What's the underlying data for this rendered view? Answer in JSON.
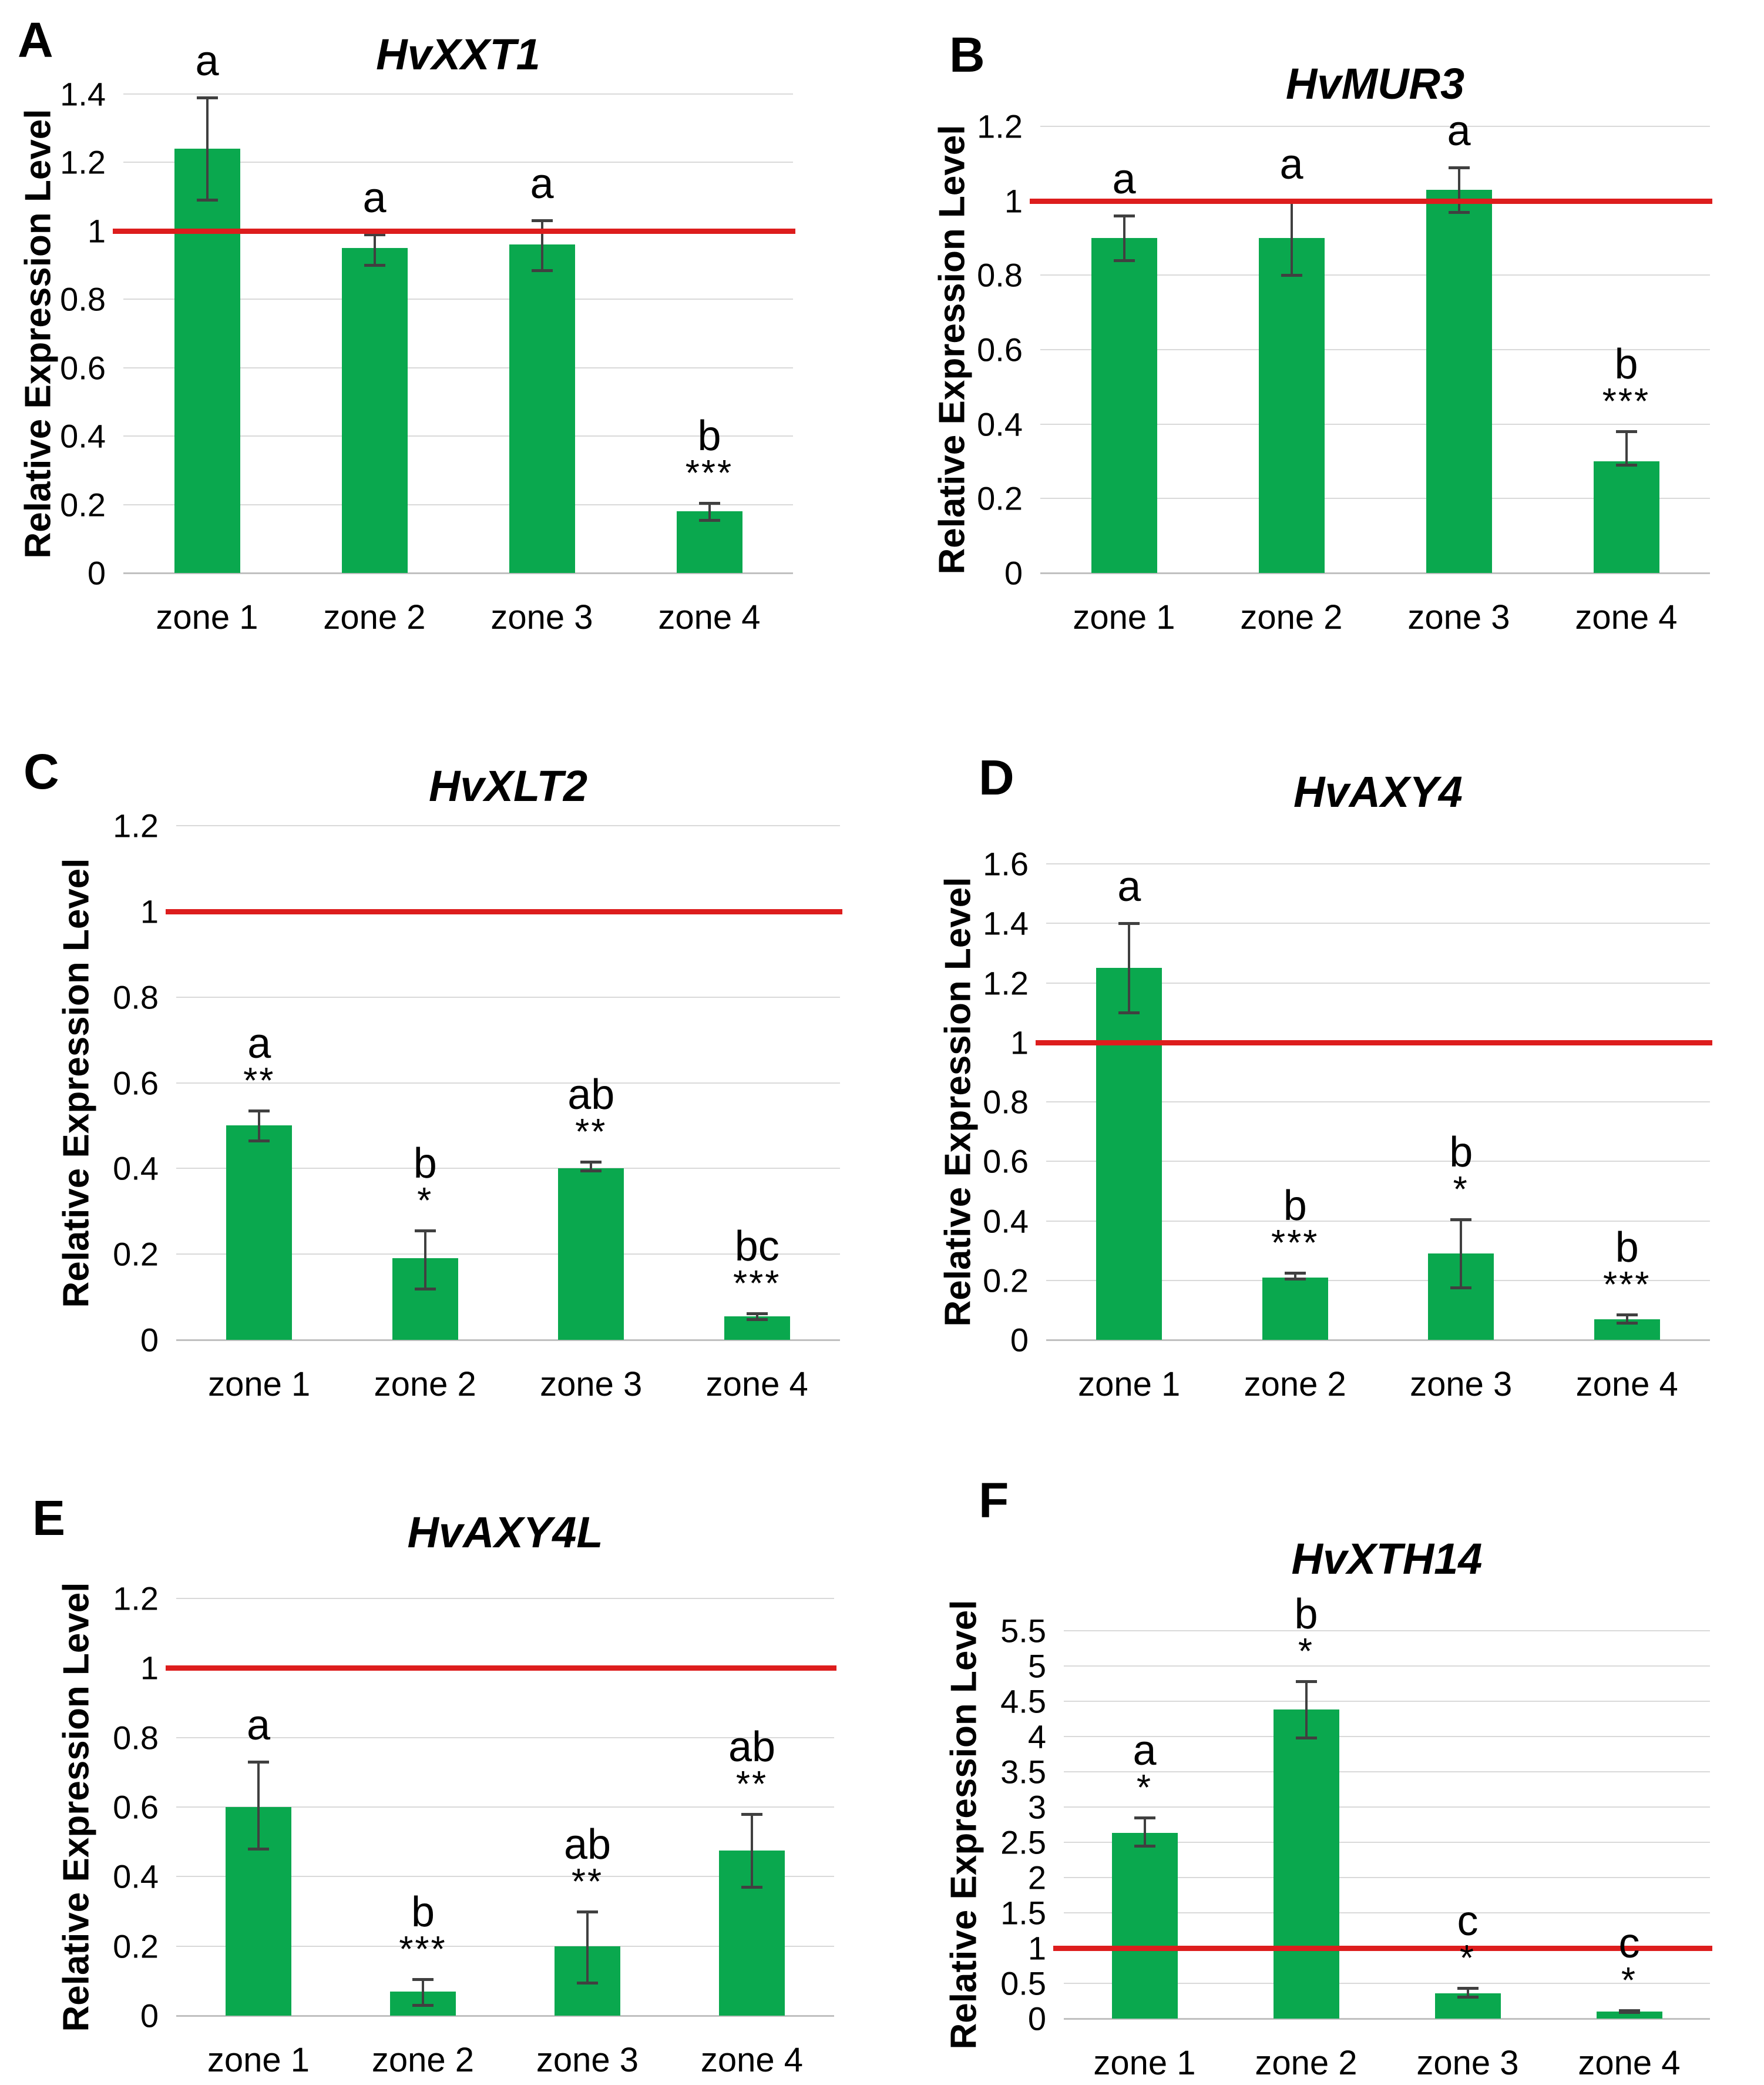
{
  "figure": {
    "y_axis_label": "Relative Expression Level",
    "categories": [
      "zone 1",
      "zone 2",
      "zone 3",
      "zone 4"
    ],
    "colors": {
      "bar_green": "#0aa84e",
      "reference_red": "#dd1d1d",
      "gridline": "#d9d9d9",
      "error_bar": "#404040",
      "text": "#000000"
    }
  },
  "chart_data": [
    {
      "type": "bar",
      "panel_letter": "A",
      "title": "HvXXT1",
      "ylim": [
        0,
        1.4
      ],
      "ytick_labels": [
        "1.4",
        "1.2",
        "1",
        "0.8",
        "0.6",
        "0.4",
        "0.2",
        "0"
      ],
      "reference_line": 1,
      "categories": [
        "zone 1",
        "zone 2",
        "zone 3",
        "zone 4"
      ],
      "values": [
        1.24,
        0.95,
        0.96,
        0.18
      ],
      "err_low": [
        1.09,
        0.9,
        0.885,
        0.155
      ],
      "err_high": [
        1.39,
        0.99,
        1.03,
        0.205
      ],
      "sig_letters": [
        "a",
        "a",
        "a",
        "b"
      ],
      "sig_stars": [
        "",
        "",
        "",
        "***"
      ]
    },
    {
      "type": "bar",
      "panel_letter": "B",
      "title": "HvMUR3",
      "ylim": [
        0,
        1.2
      ],
      "ytick_labels": [
        "1.2",
        "1",
        "0.8",
        "0.6",
        "0.4",
        "0.2",
        "0"
      ],
      "reference_line": 1,
      "categories": [
        "zone 1",
        "zone 2",
        "zone 3",
        "zone 4"
      ],
      "values": [
        0.9,
        0.9,
        1.03,
        0.3
      ],
      "err_low": [
        0.84,
        0.8,
        0.97,
        0.29
      ],
      "err_high": [
        0.96,
        1.0,
        1.09,
        0.38
      ],
      "sig_letters": [
        "a",
        "a",
        "a",
        "b"
      ],
      "sig_stars": [
        "",
        "",
        "",
        "***"
      ]
    },
    {
      "type": "bar",
      "panel_letter": "C",
      "title": "HvXLT2",
      "ylim": [
        0,
        1.2
      ],
      "ytick_labels": [
        "1.2",
        "1",
        "0.8",
        "0.6",
        "0.4",
        "0.2",
        "0"
      ],
      "reference_line": 1,
      "categories": [
        "zone 1",
        "zone 2",
        "zone 3",
        "zone 4"
      ],
      "values": [
        0.5,
        0.19,
        0.4,
        0.055
      ],
      "err_low": [
        0.465,
        0.12,
        0.395,
        0.048
      ],
      "err_high": [
        0.535,
        0.255,
        0.415,
        0.062
      ],
      "sig_letters": [
        "a",
        "b",
        "ab",
        "bc"
      ],
      "sig_stars": [
        "**",
        "*",
        "**",
        "***"
      ]
    },
    {
      "type": "bar",
      "panel_letter": "D",
      "title": "HvAXY4",
      "ylim": [
        0,
        1.6
      ],
      "ytick_labels": [
        "1.6",
        "1.4",
        "1.2",
        "1",
        "0.8",
        "0.6",
        "0.4",
        "0.2",
        "0"
      ],
      "reference_line": 1,
      "categories": [
        "zone 1",
        "zone 2",
        "zone 3",
        "zone 4"
      ],
      "values": [
        1.25,
        0.21,
        0.29,
        0.07
      ],
      "err_low": [
        1.1,
        0.205,
        0.175,
        0.058
      ],
      "err_high": [
        1.4,
        0.225,
        0.405,
        0.085
      ],
      "sig_letters": [
        "a",
        "b",
        "b",
        "b"
      ],
      "sig_stars": [
        "",
        "***",
        "*",
        "***"
      ]
    },
    {
      "type": "bar",
      "panel_letter": "E",
      "title": "HvAXY4L",
      "ylim": [
        0,
        1.2
      ],
      "ytick_labels": [
        "1.2",
        "1",
        "0.8",
        "0.6",
        "0.4",
        "0.2",
        "0"
      ],
      "reference_line": 1,
      "categories": [
        "zone 1",
        "zone 2",
        "zone 3",
        "zone 4"
      ],
      "values": [
        0.6,
        0.07,
        0.2,
        0.475
      ],
      "err_low": [
        0.48,
        0.03,
        0.095,
        0.37
      ],
      "err_high": [
        0.73,
        0.105,
        0.3,
        0.58
      ],
      "sig_letters": [
        "a",
        "b",
        "ab",
        "ab"
      ],
      "sig_stars": [
        "",
        "***",
        "**",
        "**"
      ]
    },
    {
      "type": "bar",
      "panel_letter": "F",
      "title": "HvXTH14",
      "ylim": [
        0,
        5.5
      ],
      "ytick_labels": [
        "5.5",
        "5",
        "4.5",
        "4",
        "3.5",
        "3",
        "2.5",
        "2",
        "1.5",
        "1",
        "0.5",
        "0"
      ],
      "reference_line": 1,
      "categories": [
        "zone 1",
        "zone 2",
        "zone 3",
        "zone 4"
      ],
      "values": [
        2.63,
        4.38,
        0.36,
        0.1
      ],
      "err_low": [
        2.45,
        3.98,
        0.31,
        0.09
      ],
      "err_high": [
        2.85,
        4.78,
        0.43,
        0.12
      ],
      "sig_letters": [
        "a",
        "b",
        "c",
        "c"
      ],
      "sig_stars": [
        "*",
        "*",
        "*",
        "*"
      ]
    }
  ]
}
